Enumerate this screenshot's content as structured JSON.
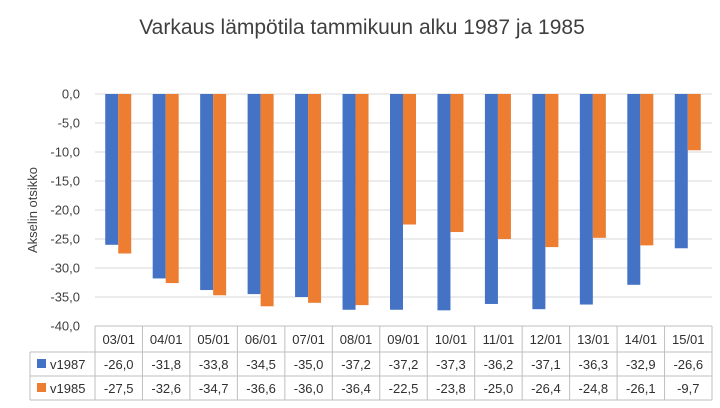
{
  "chart_data": {
    "type": "bar",
    "title": "Varkaus lämpötila tammikuun alku 1987 ja 1985",
    "xlabel": "",
    "ylabel": "Akselin otsikko",
    "ylim": [
      -40,
      0
    ],
    "yticks": [
      "0,0",
      "-5,0",
      "-10,0",
      "-15,0",
      "-20,0",
      "-25,0",
      "-30,0",
      "-35,0",
      "-40,0"
    ],
    "grid": true,
    "legend": "data-table",
    "categories": [
      "03/01",
      "04/01",
      "05/01",
      "06/01",
      "07/01",
      "08/01",
      "09/01",
      "10/01",
      "11/01",
      "12/01",
      "13/01",
      "14/01",
      "15/01"
    ],
    "series": [
      {
        "name": "v1987",
        "color": "#4472c4",
        "values": [
          -26.0,
          -31.8,
          -33.8,
          -34.5,
          -35.0,
          -37.2,
          -37.2,
          -37.3,
          -36.2,
          -37.1,
          -36.3,
          -32.9,
          -26.6
        ],
        "labels": [
          "-26,0",
          "-31,8",
          "-33,8",
          "-34,5",
          "-35,0",
          "-37,2",
          "-37,2",
          "-37,3",
          "-36,2",
          "-37,1",
          "-36,3",
          "-32,9",
          "-26,6"
        ]
      },
      {
        "name": "v1985",
        "color": "#ed7d31",
        "values": [
          -27.5,
          -32.6,
          -34.7,
          -36.6,
          -36.0,
          -36.4,
          -22.5,
          -23.8,
          -25.0,
          -26.4,
          -24.8,
          -26.1,
          -9.7
        ],
        "labels": [
          "-27,5",
          "-32,6",
          "-34,7",
          "-36,6",
          "-36,0",
          "-36,4",
          "-22,5",
          "-23,8",
          "-25,0",
          "-26,4",
          "-24,8",
          "-26,1",
          "-9,7"
        ]
      }
    ]
  }
}
